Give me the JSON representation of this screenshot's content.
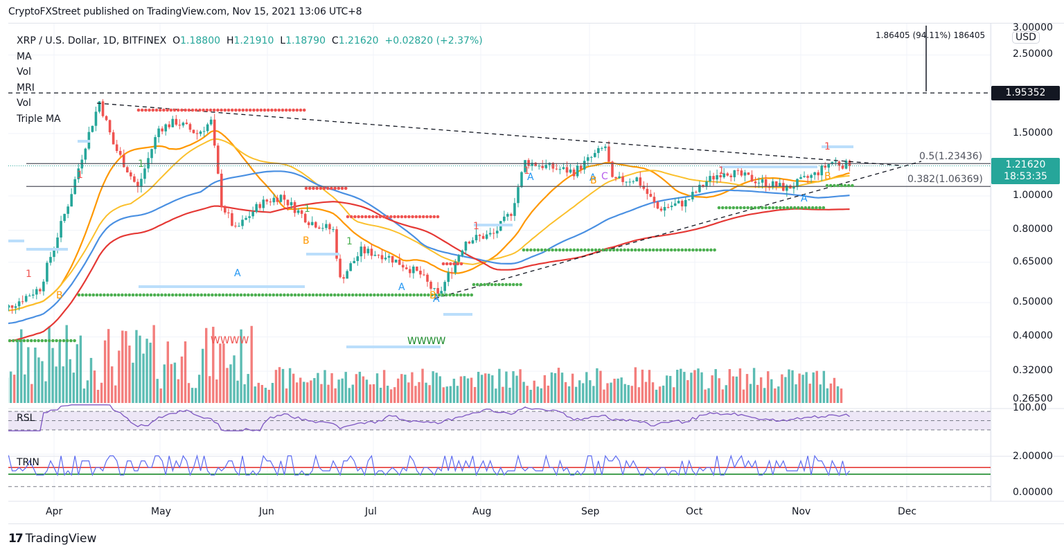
{
  "header": {
    "published": "CryptoFXStreet published on TradingView.com, Nov 15, 2021 13:06 UTC+8"
  },
  "legend": {
    "symbol": "XRP / U.S. Dollar, 1D, BITFINEX",
    "o_label": "O",
    "o_value": "1.18800",
    "h_label": "H",
    "h_value": "1.21910",
    "l_label": "L",
    "l_value": "1.18790",
    "c_label": "C",
    "c_value": "1.21620",
    "change": "+0.02820 (+2.37%)",
    "indicators": [
      "MA",
      "Vol",
      "MRI",
      "Vol",
      "Triple MA"
    ]
  },
  "price_axis": {
    "currency": "USD",
    "ticks": [
      "3.00000",
      "2.50000",
      "1.50000",
      "1.00000",
      "0.80000",
      "0.65000",
      "0.50000",
      "0.40000",
      "0.32000",
      "0.26500"
    ],
    "resistance_tag": "1.95352",
    "last_price_tag": "1.21620",
    "countdown": "18:53:35"
  },
  "fib_levels": [
    {
      "label": "0.5(1.23436)",
      "value": 1.23436
    },
    {
      "label": "0.382(1.06369)",
      "value": 1.06369
    }
  ],
  "measure": {
    "label": "1.86405 (94.11%) 186405"
  },
  "panes": {
    "rsi": {
      "label": "RSL",
      "axis_top": "100.00"
    },
    "trin": {
      "label": "TRIN",
      "ticks": [
        "2.00000",
        "0.00000"
      ]
    }
  },
  "time_axis": {
    "labels": [
      "Apr",
      "May",
      "Jun",
      "Jul",
      "Aug",
      "Sep",
      "Oct",
      "Nov",
      "Dec"
    ]
  },
  "footer": {
    "brand": "TradingView",
    "logo_mark": "17"
  },
  "colors": {
    "up": "#26a69a",
    "down": "#ef5350",
    "ma_fast": "#ff9800",
    "ma_mid": "#fbc02d",
    "ma_slow": "#4a90e2",
    "ma_200": "#e53935",
    "rsi_line": "#7e57c2",
    "rsi_band": "#ede7f6",
    "trin_line": "#5c6bf0",
    "trin_upper": "#e53935",
    "trin_lower": "#1b8a2a",
    "dots_red": "#ef5350",
    "dots_green": "#4caf50",
    "light_blue": "#bbdefb",
    "marker_A": "#2196f3",
    "marker_B": "#ff9800",
    "marker_C": "#b65dec"
  },
  "chart_data": {
    "type": "candlestick",
    "title": "XRP / U.S. Dollar, 1D, BITFINEX",
    "xlabel": "",
    "ylabel": "USD",
    "yscale": "log",
    "ylim": [
      0.265,
      3.0
    ],
    "x_range": [
      "2021-03-15",
      "2021-12-31"
    ],
    "last": {
      "open": 1.188,
      "high": 1.2191,
      "low": 1.1879,
      "close": 1.2162,
      "change": 0.0282,
      "change_pct": 2.37
    },
    "monthly_approx_closes": [
      {
        "month": "Mar (late)",
        "price": 0.55
      },
      {
        "month": "Apr",
        "price": 1.38
      },
      {
        "month": "May",
        "price": 1.35
      },
      {
        "month": "Jun",
        "price": 0.85
      },
      {
        "month": "Jul",
        "price": 0.6
      },
      {
        "month": "Aug",
        "price": 1.18
      },
      {
        "month": "Sep",
        "price": 0.95
      },
      {
        "month": "Oct",
        "price": 1.1
      },
      {
        "month": "Nov 15",
        "price": 1.2162
      }
    ],
    "key_points": [
      {
        "date": "2021-04-14",
        "label": "April high",
        "price": 1.96
      },
      {
        "date": "2021-05-23",
        "label": "May low",
        "price": 0.65
      },
      {
        "date": "2021-06-22",
        "label": "June low",
        "price": 0.51
      },
      {
        "date": "2021-07-20",
        "label": "July low",
        "price": 0.51
      },
      {
        "date": "2021-09-06",
        "label": "Sep high",
        "price": 1.41
      },
      {
        "date": "2021-11-10",
        "label": "Nov high",
        "price": 1.35
      }
    ],
    "horizontal_levels": [
      {
        "label": "Resistance (dashed)",
        "value": 1.95352
      },
      {
        "label": "Fib 0.5",
        "value": 1.23436
      },
      {
        "label": "Fib 0.382",
        "value": 1.06369
      }
    ],
    "trendlines": [
      {
        "name": "descending",
        "from": {
          "date": "2021-04-14",
          "price": 1.88
        },
        "to": {
          "date": "2021-11-25",
          "price": 1.22
        }
      },
      {
        "name": "ascending",
        "from": {
          "date": "2021-07-20",
          "price": 0.51
        },
        "to": {
          "date": "2021-11-28",
          "price": 1.2
        }
      }
    ],
    "moving_averages": [
      {
        "name": "MA fast (orange)",
        "last": 1.14
      },
      {
        "name": "MA mid (yellow)",
        "last": 1.11
      },
      {
        "name": "MA 100 (blue)",
        "last": 1.08
      },
      {
        "name": "MA 200 (red)",
        "last": 1.0
      }
    ],
    "volume": {
      "peaks": [
        "early Apr",
        "mid May",
        "Sep 7",
        "Nov 10"
      ]
    },
    "rsi": {
      "range": [
        0,
        100
      ],
      "band": [
        30,
        70
      ],
      "last": 57
    },
    "trin": {
      "range": [
        0,
        2
      ],
      "upper": 1.2,
      "lower": 0.8,
      "last": 1.0
    }
  }
}
